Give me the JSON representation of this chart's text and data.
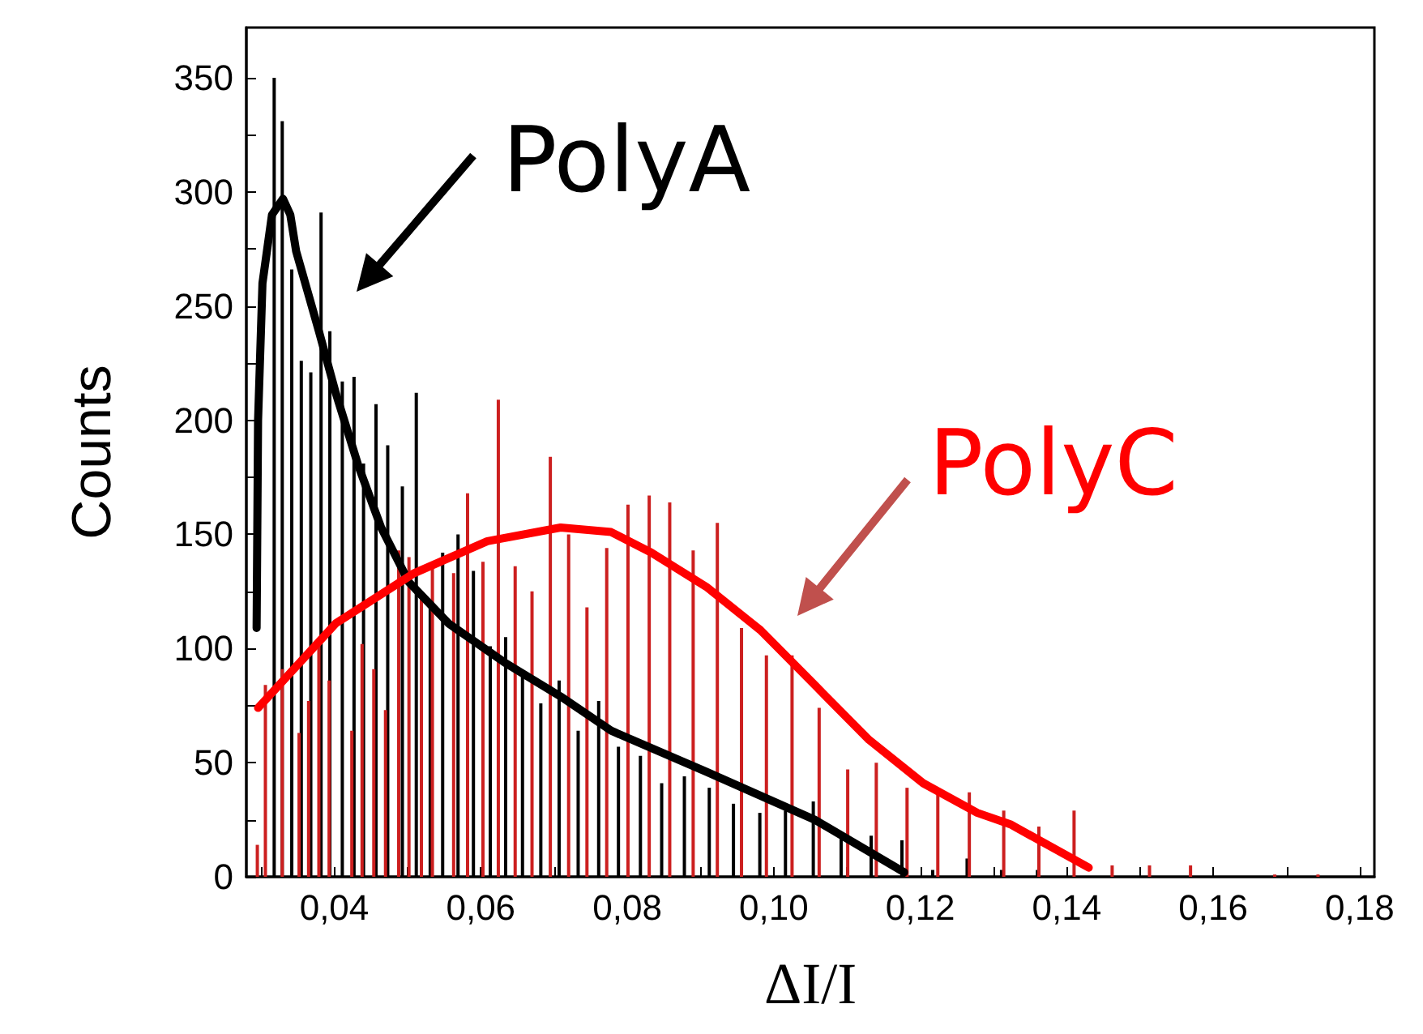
{
  "chart_data": {
    "type": "bar",
    "xlabel": "ΔI/I",
    "ylabel": "Counts",
    "xlim": [
      0.028,
      0.182
    ],
    "ylim": [
      0,
      372
    ],
    "xticks": [
      {
        "value": 0.03,
        "label": null
      },
      {
        "value": 0.04,
        "label": "0,04"
      },
      {
        "value": 0.05,
        "label": null
      },
      {
        "value": 0.06,
        "label": "0,06"
      },
      {
        "value": 0.07,
        "label": null
      },
      {
        "value": 0.08,
        "label": "0,08"
      },
      {
        "value": 0.09,
        "label": null
      },
      {
        "value": 0.1,
        "label": "0,10"
      },
      {
        "value": 0.11,
        "label": null
      },
      {
        "value": 0.12,
        "label": "0,12"
      },
      {
        "value": 0.13,
        "label": null
      },
      {
        "value": 0.14,
        "label": "0,14"
      },
      {
        "value": 0.15,
        "label": null
      },
      {
        "value": 0.16,
        "label": "0,16"
      },
      {
        "value": 0.17,
        "label": null
      },
      {
        "value": 0.18,
        "label": "0,18"
      }
    ],
    "yticks": [
      0,
      {
        "value": 25,
        "label": null
      },
      50,
      {
        "value": 75,
        "label": null
      },
      100,
      {
        "value": 125,
        "label": null
      },
      150,
      {
        "value": 175,
        "label": null
      },
      200,
      {
        "value": 225,
        "label": null
      },
      250,
      {
        "value": 275,
        "label": null
      },
      300,
      {
        "value": 325,
        "label": null
      },
      350
    ],
    "grid": false,
    "legend": "top left",
    "series": [
      {
        "color": "#cc1f1f",
        "x": [
          0.0295,
          0.0306,
          0.0329,
          0.0352,
          0.0365,
          0.0379,
          0.0393,
          0.0424,
          0.0438,
          0.0454,
          0.047,
          0.0488,
          0.0502,
          0.0519,
          0.0534,
          0.0563,
          0.0582,
          0.0603,
          0.0624,
          0.0647,
          0.067,
          0.0695,
          0.072,
          0.0745,
          0.0772,
          0.0801,
          0.083,
          0.0858,
          0.089,
          0.0923,
          0.0956,
          0.099,
          0.1025,
          0.1062,
          0.1101,
          0.114,
          0.1182,
          0.1224,
          0.1267,
          0.1314,
          0.1362,
          0.141,
          0.1462,
          0.1513,
          0.1569,
          0.1684,
          0.1743
        ],
        "values": [
          14,
          84,
          91,
          63,
          77,
          103,
          86,
          64,
          102,
          91,
          73,
          143,
          140,
          123,
          135,
          133,
          168,
          138,
          209,
          136,
          125,
          184,
          150,
          118,
          144,
          163,
          167,
          164,
          143,
          155,
          109,
          97,
          97,
          74,
          47,
          50,
          39,
          37,
          37,
          29,
          22,
          29,
          5,
          5,
          5,
          1,
          1
        ]
      },
      {
        "color": "#000000",
        "x": [
          0.0318,
          0.0329,
          0.0342,
          0.0355,
          0.0368,
          0.0382,
          0.0394,
          0.0411,
          0.0427,
          0.044,
          0.0457,
          0.0473,
          0.0493,
          0.0512,
          0.0531,
          0.0548,
          0.0569,
          0.059,
          0.0613,
          0.0634,
          0.0657,
          0.0682,
          0.0707,
          0.0733,
          0.0761,
          0.0788,
          0.0818,
          0.0847,
          0.0878,
          0.0912,
          0.0945,
          0.0981,
          0.1016,
          0.1054,
          0.1092,
          0.1133,
          0.1175,
          0.1217,
          0.1264,
          0.1311,
          0.136
        ],
        "values": [
          350,
          331,
          266,
          226,
          221,
          291,
          239,
          217,
          219,
          181,
          207,
          189,
          171,
          212,
          120,
          142,
          150,
          134,
          101,
          105,
          90,
          76,
          86,
          64,
          77,
          57,
          53,
          41,
          44,
          39,
          32,
          28,
          29,
          33,
          19,
          18,
          16,
          3,
          8,
          3,
          3
        ]
      },
      {
        "type": "line",
        "name": "PolyA",
        "color": "#000000",
        "marker": "none",
        "x": [
          0.0294,
          0.0296,
          0.0302,
          0.0315,
          0.033,
          0.034,
          0.0348,
          0.0379,
          0.0402,
          0.0433,
          0.0464,
          0.0502,
          0.0556,
          0.0632,
          0.0709,
          0.0778,
          0.0908,
          0.1056,
          0.1178
        ],
        "values": [
          109,
          200,
          260,
          290,
          297,
          290,
          274,
          239,
          212,
          180,
          153,
          129,
          111,
          94,
          79,
          64,
          46,
          25,
          2
        ]
      },
      {
        "type": "line",
        "name": "PolyC",
        "color": "#ff0000",
        "marker": "none",
        "x": [
          0.0296,
          0.0402,
          0.0509,
          0.0609,
          0.0709,
          0.0778,
          0.0833,
          0.0908,
          0.0982,
          0.1056,
          0.113,
          0.1204,
          0.1278,
          0.1323,
          0.143
        ],
        "values": [
          74,
          111,
          133,
          147,
          153,
          151,
          142,
          127,
          108,
          84,
          60,
          41,
          28,
          23,
          4
        ]
      }
    ]
  }
}
